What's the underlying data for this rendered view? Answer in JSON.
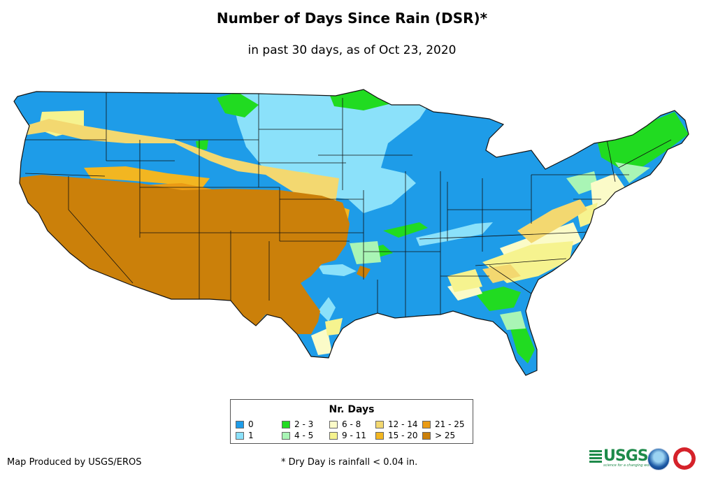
{
  "title": "Number of Days Since Rain (DSR)*",
  "subtitle": "in past 30 days, as of Oct 23, 2020",
  "legend": {
    "title": "Nr. Days",
    "items": [
      {
        "label": "0",
        "color": "#1e9ce8"
      },
      {
        "label": "1",
        "color": "#8be1fa"
      },
      {
        "label": "2 - 3",
        "color": "#21db21"
      },
      {
        "label": "4 - 5",
        "color": "#a9f5b5"
      },
      {
        "label": "6 - 8",
        "color": "#fbfbc8"
      },
      {
        "label": "9 - 11",
        "color": "#f6f38f"
      },
      {
        "label": "12 - 14",
        "color": "#f3d870"
      },
      {
        "label": "15 - 20",
        "color": "#f2b621"
      },
      {
        "label": "21 - 25",
        "color": "#ea9b14"
      },
      {
        "label": "> 25",
        "color": "#cb800a"
      }
    ]
  },
  "footer": {
    "producer": "Map Produced by USGS/EROS",
    "note": "* Dry Day is rainfall < 0.04 in."
  },
  "logos": {
    "usgs": "USGS",
    "usgs_tagline": "science for a changing world",
    "noaa": "NOAA",
    "nws": "National Weather Service"
  }
}
